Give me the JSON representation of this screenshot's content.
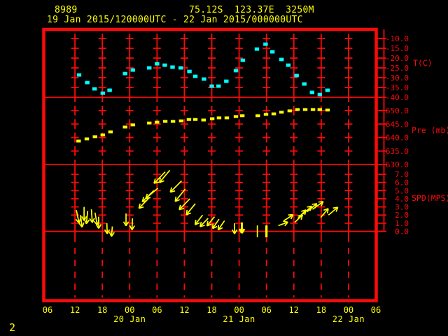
{
  "header": {
    "station_id": "8989",
    "location": "75.12S  123.37E  3250M",
    "period": "19 Jan 2015/120000UTC - 22 Jan 2015/000000UTC"
  },
  "page_number": "2",
  "colors": {
    "axis": "#fa0a0a",
    "label_text": "#ffff00",
    "temperature_series": "#00ffff",
    "pressure_series": "#ffff00",
    "wind_series": "#ffff00"
  },
  "x_axis": {
    "start": "19 Jan 2015 06UTC",
    "end": "22 Jan 2015 06UTC",
    "hours_span": 72,
    "grid_hours": [
      6,
      12,
      18,
      24,
      30,
      36,
      42,
      48,
      54,
      60,
      66
    ],
    "hour_label_hours": [
      0,
      6,
      12,
      18,
      24,
      30,
      36,
      42,
      48,
      54,
      60,
      66,
      72
    ],
    "hour_labels": [
      "06",
      "12",
      "18",
      "00",
      "06",
      "12",
      "18",
      "00",
      "06",
      "12",
      "18",
      "00",
      "06"
    ],
    "day_labels": [
      {
        "label": "20 Jan",
        "hour": 18
      },
      {
        "label": "21 Jan",
        "hour": 42
      },
      {
        "label": "22 Jan",
        "hour": 66
      }
    ]
  },
  "chart_data": [
    {
      "type": "scatter",
      "name": "temperature",
      "ylabel": "T(C)",
      "ylim": [
        -40,
        -10
      ],
      "tick_values": [
        -10,
        -15,
        -20,
        -25,
        -30,
        -35,
        -40
      ],
      "tick_labels": [
        "-10.0",
        "-15.0",
        "-20.0",
        "-25.0",
        "-30.0",
        "-35.0",
        "-40.0"
      ],
      "x_hours": [
        6.9,
        8.7,
        10.3,
        12.1,
        13.6,
        17.0,
        18.7,
        22.3,
        24.0,
        25.7,
        27.4,
        29.2,
        31.1,
        32.4,
        34.3,
        36.0,
        37.5,
        39.2,
        41.3,
        42.8,
        45.9,
        47.8,
        49.3,
        51.3,
        52.8,
        54.6,
        56.3,
        58.0,
        59.7,
        61.4
      ],
      "values": [
        -28.6,
        -32.5,
        -35.7,
        -37.9,
        -36.4,
        -27.9,
        -26.1,
        -25.0,
        -22.9,
        -23.6,
        -24.6,
        -25.0,
        -26.8,
        -29.3,
        -30.7,
        -34.3,
        -34.3,
        -31.8,
        -26.4,
        -21.1,
        -15.4,
        -12.9,
        -16.8,
        -20.7,
        -23.6,
        -28.9,
        -33.2,
        -37.5,
        -38.6,
        -36.4
      ]
    },
    {
      "type": "scatter",
      "name": "pressure",
      "ylabel": "Pre (mb)",
      "ylim": [
        630,
        650
      ],
      "tick_values": [
        650,
        645,
        640,
        635,
        630
      ],
      "tick_labels": [
        "650.0",
        "645.0",
        "640.0",
        "635.0",
        "630.0"
      ],
      "x_hours": [
        6.8,
        8.6,
        10.4,
        12.1,
        13.8,
        17.0,
        18.7,
        22.3,
        24.0,
        25.8,
        27.5,
        29.3,
        31.0,
        32.4,
        34.2,
        36.1,
        37.6,
        39.3,
        41.3,
        42.7,
        46.1,
        47.9,
        49.6,
        51.3,
        53.1,
        54.8,
        56.5,
        58.2,
        59.7,
        61.4
      ],
      "values": [
        638.7,
        639.5,
        640.3,
        641.0,
        642.1,
        643.9,
        644.7,
        645.4,
        645.7,
        646.0,
        646.0,
        646.2,
        646.7,
        646.7,
        646.5,
        647.0,
        647.3,
        647.3,
        647.8,
        648.1,
        648.1,
        648.6,
        648.8,
        649.4,
        649.9,
        650.4,
        650.4,
        650.4,
        650.4,
        650.2
      ]
    },
    {
      "type": "vector",
      "name": "wind_speed",
      "ylabel": "SPD(MPS)",
      "ylim": [
        0,
        7
      ],
      "tick_values": [
        7,
        6,
        5,
        4,
        3,
        2,
        1,
        0
      ],
      "tick_labels": [
        "7.0",
        "6.0",
        "5.0",
        "4.0",
        "3.0",
        "2.0",
        "1.0",
        "0.0"
      ],
      "arrows": [
        {
          "t": 6.3,
          "spd": 2.6,
          "dir": 282
        },
        {
          "t": 7.2,
          "spd": 2.0,
          "dir": 278
        },
        {
          "t": 8.0,
          "spd": 3.0,
          "dir": 270
        },
        {
          "t": 8.8,
          "spd": 2.5,
          "dir": 264
        },
        {
          "t": 9.6,
          "spd": 2.7,
          "dir": 274
        },
        {
          "t": 10.4,
          "spd": 2.3,
          "dir": 280
        },
        {
          "t": 11.2,
          "spd": 1.8,
          "dir": 270
        },
        {
          "t": 13.0,
          "spd": 1.0,
          "dir": 272
        },
        {
          "t": 14.2,
          "spd": 0.6,
          "dir": 265
        },
        {
          "t": 17.2,
          "spd": 2.2,
          "dir": 270
        },
        {
          "t": 18.6,
          "spd": 1.6,
          "dir": 268
        },
        {
          "t": 22.4,
          "spd": 4.2,
          "dir": 226
        },
        {
          "t": 23.3,
          "spd": 5.0,
          "dir": 224
        },
        {
          "t": 24.2,
          "spd": 5.3,
          "dir": 220
        },
        {
          "t": 25.8,
          "spd": 7.3,
          "dir": 226
        },
        {
          "t": 26.8,
          "spd": 7.5,
          "dir": 230
        },
        {
          "t": 29.4,
          "spd": 6.2,
          "dir": 225
        },
        {
          "t": 30.2,
          "spd": 5.2,
          "dir": 231
        },
        {
          "t": 31.2,
          "spd": 4.0,
          "dir": 226
        },
        {
          "t": 32.4,
          "spd": 3.4,
          "dir": 231
        },
        {
          "t": 34.0,
          "spd": 2.0,
          "dir": 232
        },
        {
          "t": 35.2,
          "spd": 1.6,
          "dir": 226
        },
        {
          "t": 36.6,
          "spd": 1.8,
          "dir": 231
        },
        {
          "t": 37.6,
          "spd": 1.5,
          "dir": 236
        },
        {
          "t": 38.8,
          "spd": 1.3,
          "dir": 235
        },
        {
          "t": 41.0,
          "spd": 1.0,
          "dir": 270
        },
        {
          "t": 42.6,
          "spd": 1.1,
          "dir": 270,
          "bold": true
        },
        {
          "t": 50.6,
          "spd": 0.7,
          "dir": 20
        },
        {
          "t": 51.8,
          "spd": 1.3,
          "dir": 33
        },
        {
          "t": 54.2,
          "spd": 1.1,
          "dir": 44
        },
        {
          "t": 54.9,
          "spd": 1.6,
          "dir": 46
        },
        {
          "t": 55.9,
          "spd": 2.1,
          "dir": 41
        },
        {
          "t": 56.9,
          "spd": 2.4,
          "dir": 40
        },
        {
          "t": 58.1,
          "spd": 2.7,
          "dir": 36
        },
        {
          "t": 59.9,
          "spd": 1.7,
          "dir": 50
        },
        {
          "t": 61.6,
          "spd": 2.0,
          "dir": 40
        }
      ],
      "calm_marks": [
        {
          "t": 46.0,
          "bold": false
        },
        {
          "t": 48.0,
          "bold": true
        }
      ]
    }
  ]
}
